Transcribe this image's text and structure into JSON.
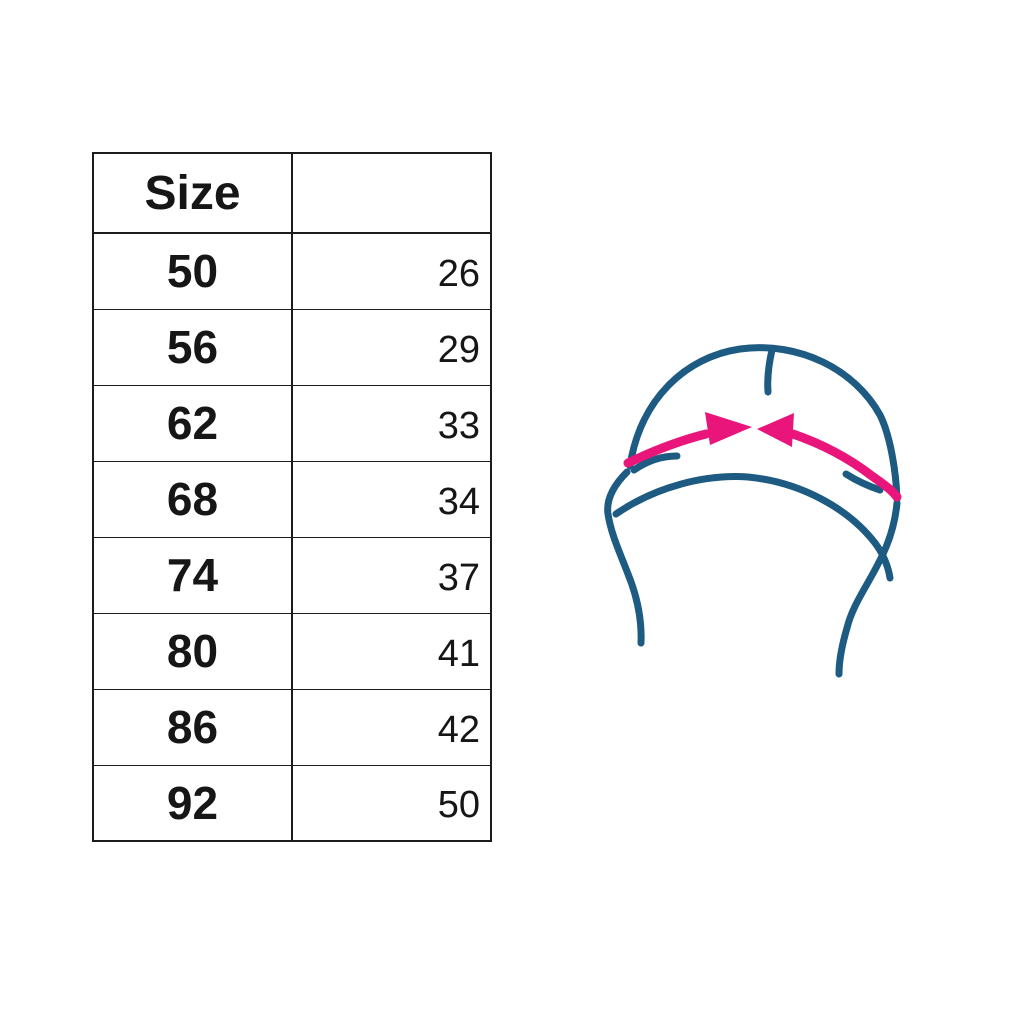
{
  "colors": {
    "background": "#ffffff",
    "table_border": "#1c1c1c",
    "text": "#161616"
  },
  "chart_data": {
    "type": "table",
    "columns": [
      "Size",
      ""
    ],
    "rows": [
      [
        "50",
        "26"
      ],
      [
        "56",
        "29"
      ],
      [
        "62",
        "33"
      ],
      [
        "68",
        "34"
      ],
      [
        "74",
        "37"
      ],
      [
        "80",
        "41"
      ],
      [
        "86",
        "42"
      ],
      [
        "92",
        "50"
      ]
    ]
  },
  "illustration": {
    "name": "baby-hat-with-ties-circumference-arrows",
    "outline_color": "#1d5b82",
    "arrow_color": "#e9157b"
  }
}
